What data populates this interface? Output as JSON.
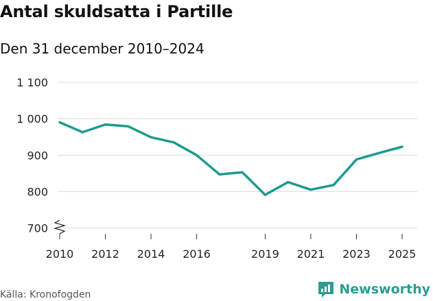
{
  "header": {
    "title": "Antal skuldsatta i Partille",
    "subtitle": "Den 31 december 2010–2024"
  },
  "footer": {
    "source": "Källa: Kronofogden",
    "brand": "Newsworthy"
  },
  "colors": {
    "line": "#1a9b8c",
    "grid": "#d9d9d9",
    "brand": "#2a9d8f"
  },
  "chart_data": {
    "type": "line",
    "title": "Antal skuldsatta i Partille",
    "subtitle": "Den 31 december 2010–2024",
    "xlabel": "",
    "ylabel": "",
    "ylim": [
      700,
      1100
    ],
    "xlim": [
      2010,
      2025
    ],
    "y_ticks": [
      700,
      800,
      900,
      1000,
      1100
    ],
    "y_tick_labels": [
      "700",
      "800",
      "900",
      "1 000",
      "1 100"
    ],
    "x_ticks": [
      2010,
      2012,
      2014,
      2016,
      2019,
      2021,
      2023,
      2025
    ],
    "x_tick_labels": [
      "2010",
      "2012",
      "2014",
      "2016",
      "2019",
      "2021",
      "2023",
      "2025"
    ],
    "grid": true,
    "axis_break": true,
    "series": [
      {
        "name": "Antal skuldsatta",
        "x": [
          2010,
          2011,
          2012,
          2013,
          2014,
          2015,
          2016,
          2017,
          2018,
          2019,
          2020,
          2021,
          2022,
          2023,
          2024,
          2025
        ],
        "values": [
          990,
          963,
          984,
          979,
          949,
          935,
          900,
          847,
          853,
          791,
          826,
          805,
          818,
          888,
          906,
          923
        ]
      }
    ]
  }
}
